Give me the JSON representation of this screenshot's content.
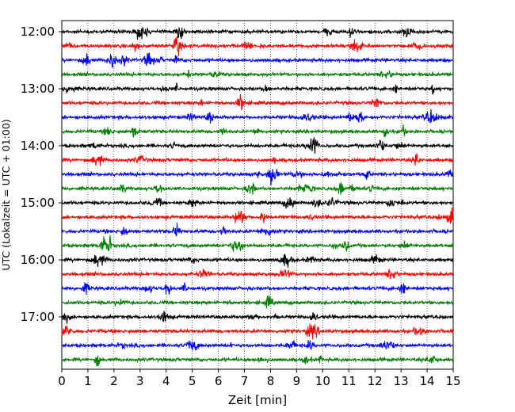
{
  "chart_data": {
    "type": "line",
    "title": "",
    "xlabel": "Zeit  [min]",
    "ylabel": "UTC (Lokalzeit = UTC + 01:00)",
    "xlim": [
      0,
      15
    ],
    "x_ticks": [
      0,
      1,
      2,
      3,
      4,
      5,
      6,
      7,
      8,
      9,
      10,
      11,
      12,
      13,
      14,
      15
    ],
    "x_tick_labels": [
      "0",
      "1",
      "2",
      "3",
      "4",
      "5",
      "6",
      "7",
      "8",
      "9",
      "10",
      "11",
      "12",
      "13",
      "14",
      "15"
    ],
    "y_tick_labels": [
      "12:00",
      "13:00",
      "14:00",
      "15:00",
      "16:00",
      "17:00"
    ],
    "rows_per_hour": 4,
    "row_minutes": 15,
    "grid": "vertical dotted",
    "color_cycle": [
      "#000000",
      "#ff0000",
      "#0000ff",
      "#008000"
    ],
    "series": [
      {
        "start": "12:00",
        "color": "#000000"
      },
      {
        "start": "12:15",
        "color": "#ff0000"
      },
      {
        "start": "12:30",
        "color": "#0000ff"
      },
      {
        "start": "12:45",
        "color": "#008000"
      },
      {
        "start": "13:00",
        "color": "#000000"
      },
      {
        "start": "13:15",
        "color": "#ff0000"
      },
      {
        "start": "13:30",
        "color": "#0000ff"
      },
      {
        "start": "13:45",
        "color": "#008000"
      },
      {
        "start": "14:00",
        "color": "#000000"
      },
      {
        "start": "14:15",
        "color": "#ff0000"
      },
      {
        "start": "14:30",
        "color": "#0000ff"
      },
      {
        "start": "14:45",
        "color": "#008000"
      },
      {
        "start": "15:00",
        "color": "#000000"
      },
      {
        "start": "15:15",
        "color": "#ff0000"
      },
      {
        "start": "15:30",
        "color": "#0000ff"
      },
      {
        "start": "15:45",
        "color": "#008000"
      },
      {
        "start": "16:00",
        "color": "#000000"
      },
      {
        "start": "16:15",
        "color": "#ff0000"
      },
      {
        "start": "16:30",
        "color": "#0000ff"
      },
      {
        "start": "16:45",
        "color": "#008000"
      },
      {
        "start": "17:00",
        "color": "#000000"
      },
      {
        "start": "17:15",
        "color": "#ff0000"
      },
      {
        "start": "17:30",
        "color": "#0000ff"
      },
      {
        "start": "17:45",
        "color": "#008000"
      }
    ]
  }
}
